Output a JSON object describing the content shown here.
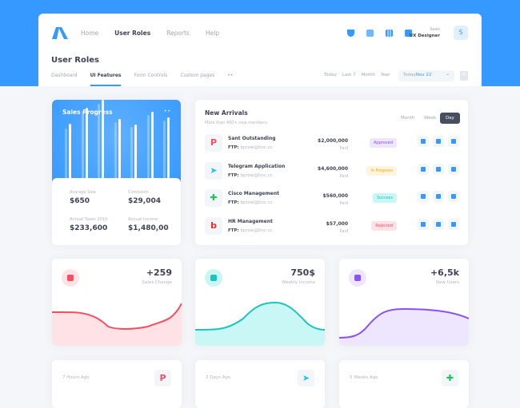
{
  "header": {
    "nav": [
      "Home",
      "User Roles",
      "Reports",
      "Help"
    ],
    "active_nav": "User Roles",
    "user": {
      "name": "Sean",
      "role": "UX Designer",
      "initial": "S"
    },
    "icons": [
      "basket-icon",
      "grid-icon",
      "chart-icon",
      "layers-icon"
    ]
  },
  "page": {
    "title": "User Roles",
    "tabs": [
      "Dashboard",
      "UI Features",
      "Form Controls",
      "Custom pages",
      "••"
    ],
    "ranges": [
      "Today",
      "Last 7",
      "Month",
      "Year"
    ],
    "date_label": "Today",
    "date_value": "Nov 22"
  },
  "sales": {
    "title": "Sales Progress",
    "menu": "••",
    "stats": [
      {
        "label": "Avarage Sale",
        "value": "$650"
      },
      {
        "label": "Comission",
        "value": "$29,004"
      },
      {
        "label": "Annual Taxes 2019",
        "value": "$233,600"
      },
      {
        "label": "Annual Income",
        "value": "$1,480,00"
      }
    ]
  },
  "arrivals": {
    "title": "New Arrivals",
    "subtitle": "More than 400+ new members",
    "periods": [
      "Month",
      "Week",
      "Day"
    ],
    "active_period": "Day",
    "rows": [
      {
        "icon": "P",
        "name": "Sant Outstanding",
        "ftp_label": "FTP:",
        "ftp": "bprow@bnc.cc",
        "amount": "$2,000,000",
        "paid": "Paid",
        "status": "Approved",
        "color": "#8950fc",
        "bg": "#eee5ff",
        "icolor": "#f64e60"
      },
      {
        "icon": "➤",
        "name": "Telegram Application",
        "ftp_label": "FTP:",
        "ftp": "bprow@bnc.cc",
        "amount": "$4,600,000",
        "paid": "Paid",
        "status": "In Progress",
        "color": "#ffa800",
        "bg": "#fff4de",
        "icolor": "#1bc5f5"
      },
      {
        "icon": "✚",
        "name": "Cisco Management",
        "ftp_label": "FTP:",
        "ftp": "bprow@bnc.cc",
        "amount": "$560,000",
        "paid": "Paid",
        "status": "Success",
        "color": "#1bc5bd",
        "bg": "#c9f7f5",
        "icolor": "#1bc55b"
      },
      {
        "icon": "b",
        "name": "HR Management",
        "ftp_label": "FTP:",
        "ftp": "bprow@bnc.cc",
        "amount": "$57,000",
        "paid": "Paid",
        "status": "Rejected",
        "color": "#f64e60",
        "bg": "#ffe2e5",
        "icolor": "#e52d27"
      }
    ]
  },
  "stat_cards": [
    {
      "value": "+259",
      "label": "Sales Change",
      "color": "#f64e60",
      "fill": "#ffe2e5"
    },
    {
      "value": "750$",
      "label": "Weekly Income",
      "color": "#1bc5bd",
      "fill": "#c9f7f5"
    },
    {
      "value": "+6,5k",
      "label": "New Users",
      "color": "#8950fc",
      "fill": "#eee5ff"
    }
  ],
  "bottom_cards": [
    {
      "ago": "7 Hours Ago",
      "icon": "P",
      "icolor": "#f64e60"
    },
    {
      "ago": "2 Days Ago",
      "icon": "➤",
      "icolor": "#1bc5f5"
    },
    {
      "ago": "5 Weeks Ago",
      "icon": "✚",
      "icolor": "#1bc55b"
    }
  ]
}
